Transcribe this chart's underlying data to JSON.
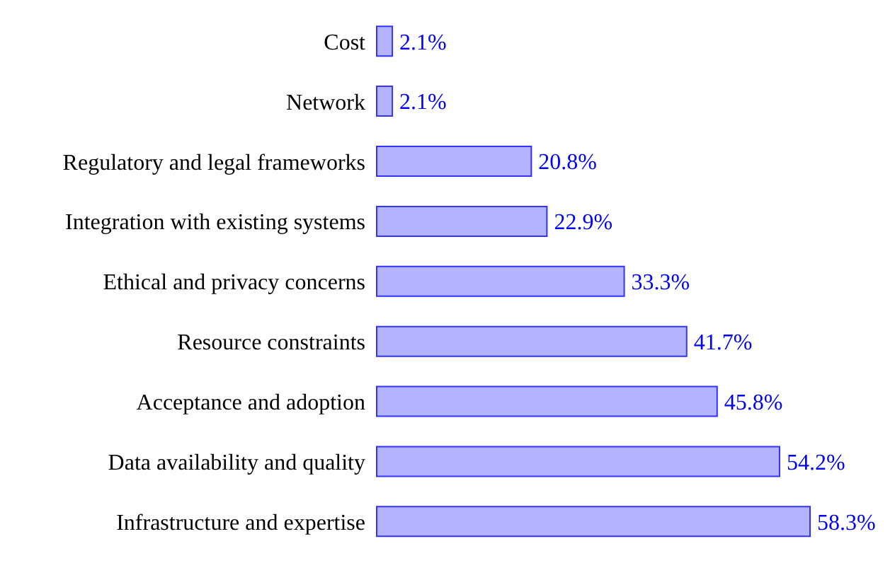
{
  "chart_data": {
    "type": "bar",
    "orientation": "horizontal",
    "categories": [
      "Cost",
      "Network",
      "Regulatory and legal frameworks",
      "Integration with existing systems",
      "Ethical and privacy concerns",
      "Resource constraints",
      "Acceptance and adoption",
      "Data availability and quality",
      "Infrastructure and expertise"
    ],
    "values": [
      2.1,
      2.1,
      20.8,
      22.9,
      33.3,
      41.7,
      45.8,
      54.2,
      58.3
    ],
    "value_labels": [
      "2.1%",
      "2.1%",
      "20.8%",
      "22.9%",
      "33.3%",
      "41.7%",
      "45.8%",
      "54.2%",
      "58.3%"
    ],
    "color": "#b3b3ff",
    "grid": false,
    "legend": false
  }
}
